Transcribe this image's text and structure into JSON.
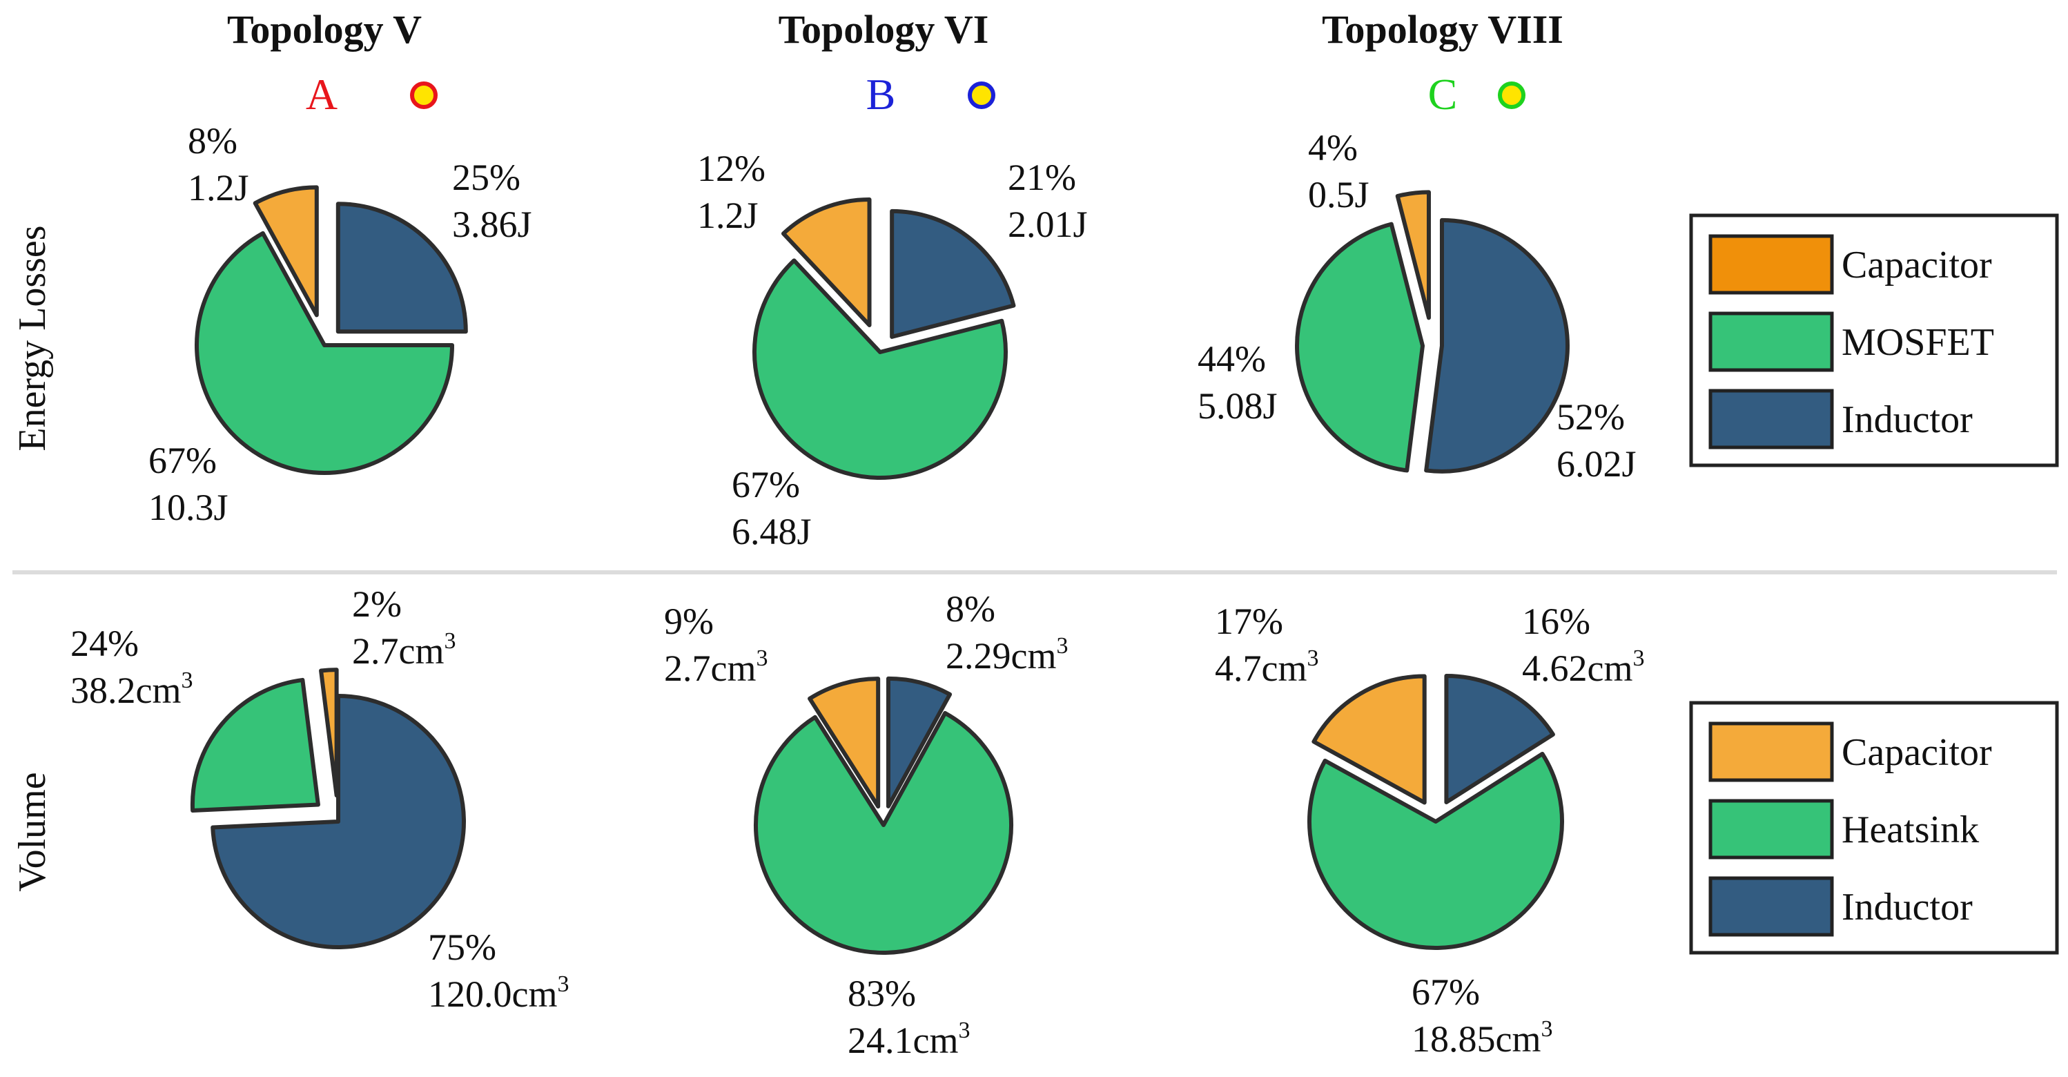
{
  "row_labels": [
    "Energy Losses",
    "Volume"
  ],
  "columns": [
    {
      "title": "Topology V",
      "marker_letter": "A",
      "letter_color": "#e8151b",
      "marker_fill": "#ffe400",
      "marker_ring": "#e8151b"
    },
    {
      "title": "Topology VI",
      "marker_letter": "B",
      "letter_color": "#1b22d8",
      "marker_fill": "#ffe400",
      "marker_ring": "#1b22d8"
    },
    {
      "title": "Topology VIII",
      "marker_letter": "C",
      "letter_color": "#1ed21e",
      "marker_fill": "#ffe400",
      "marker_ring": "#1ed21e"
    }
  ],
  "legends": [
    {
      "items": [
        {
          "label": "Capacitor",
          "color": "#f0900a"
        },
        {
          "label": "MOSFET",
          "color": "#36c378"
        },
        {
          "label": "Inductor",
          "color": "#335c81"
        }
      ]
    },
    {
      "items": [
        {
          "label": "Capacitor",
          "color": "#f4aa3a"
        },
        {
          "label": "Heatsink",
          "color": "#36c378"
        },
        {
          "label": "Inductor",
          "color": "#335c81"
        }
      ]
    }
  ],
  "chart_data": [
    {
      "type": "pie",
      "title": "Topology V",
      "row": "Energy Losses",
      "unit": "J",
      "slices": [
        {
          "name": "Inductor",
          "percent": 25,
          "value_text": "3.86J",
          "color": "#335c81"
        },
        {
          "name": "MOSFET",
          "percent": 67,
          "value_text": "10.3J",
          "color": "#36c378"
        },
        {
          "name": "Capacitor",
          "percent": 8,
          "value_text": "1.2J",
          "color": "#f4aa3a"
        }
      ]
    },
    {
      "type": "pie",
      "title": "Topology VI",
      "row": "Energy Losses",
      "unit": "J",
      "slices": [
        {
          "name": "Inductor",
          "percent": 21,
          "value_text": "2.01J",
          "color": "#335c81"
        },
        {
          "name": "MOSFET",
          "percent": 67,
          "value_text": "6.48J",
          "color": "#36c378"
        },
        {
          "name": "Capacitor",
          "percent": 12,
          "value_text": "1.2J",
          "color": "#f4aa3a"
        }
      ]
    },
    {
      "type": "pie",
      "title": "Topology VIII",
      "row": "Energy Losses",
      "unit": "J",
      "slices": [
        {
          "name": "Inductor",
          "percent": 52,
          "value_text": "6.02J",
          "color": "#335c81"
        },
        {
          "name": "MOSFET",
          "percent": 44,
          "value_text": "5.08J",
          "color": "#36c378"
        },
        {
          "name": "Capacitor",
          "percent": 4,
          "value_text": "0.5J",
          "color": "#f4aa3a"
        }
      ]
    },
    {
      "type": "pie",
      "title": "Topology V",
      "row": "Volume",
      "unit": "cm3",
      "slices": [
        {
          "name": "Inductor",
          "percent": 75,
          "value_text": "120.0cm",
          "color": "#335c81"
        },
        {
          "name": "Heatsink",
          "percent": 24,
          "value_text": "38.2cm",
          "color": "#36c378"
        },
        {
          "name": "Capacitor",
          "percent": 2,
          "value_text": "2.7cm",
          "color": "#f4aa3a"
        }
      ]
    },
    {
      "type": "pie",
      "title": "Topology VI",
      "row": "Volume",
      "unit": "cm3",
      "slices": [
        {
          "name": "Inductor",
          "percent": 8,
          "value_text": "2.29cm",
          "color": "#335c81"
        },
        {
          "name": "Heatsink",
          "percent": 83,
          "value_text": "24.1cm",
          "color": "#36c378"
        },
        {
          "name": "Capacitor",
          "percent": 9,
          "value_text": "2.7cm",
          "color": "#f4aa3a"
        }
      ]
    },
    {
      "type": "pie",
      "title": "Topology VIII",
      "row": "Volume",
      "unit": "cm3",
      "slices": [
        {
          "name": "Inductor",
          "percent": 16,
          "value_text": "4.62cm",
          "color": "#335c81"
        },
        {
          "name": "Heatsink",
          "percent": 67,
          "value_text": "18.85cm",
          "color": "#36c378"
        },
        {
          "name": "Capacitor",
          "percent": 17,
          "value_text": "4.7cm",
          "color": "#f4aa3a"
        }
      ]
    }
  ]
}
